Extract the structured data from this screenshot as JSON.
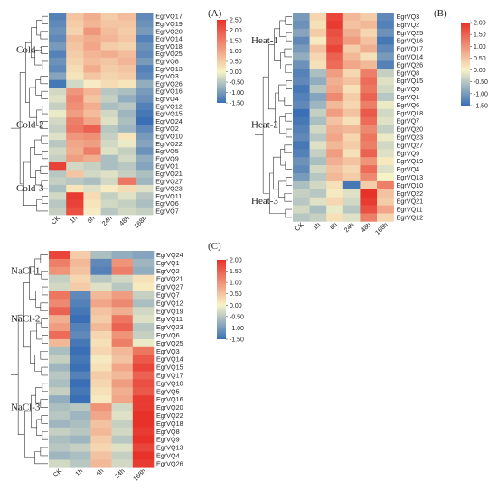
{
  "colors": {
    "low": "#3a6fb5",
    "mid": "#f7f3c8",
    "high": "#e7322a"
  },
  "chart_data": [
    {
      "type": "heatmap",
      "panel_label": "(A)",
      "columns": [
        "CK",
        "1h",
        "6h",
        "24h",
        "48h",
        "168h"
      ],
      "rows": [
        "EgrVQ17",
        "EgrVQ19",
        "EgrVQ20",
        "EgrVQ14",
        "EgrVQ18",
        "EgrVQ25",
        "EgrVQ8",
        "EgrVQ13",
        "EgrVQ3",
        "EgrVQ26",
        "EgrVQ16",
        "EgrVQ4",
        "EgrVQ12",
        "EgrVQ15",
        "EgrVQ24",
        "EgrVQ2",
        "EgrVQ10",
        "EgrVQ22",
        "EgrVQ5",
        "EgrVQ9",
        "EgrVQ1",
        "EgrVQ21",
        "EgrVQ27",
        "EgrVQ23",
        "EgrVQ11",
        "EgrVQ6",
        "EgrVQ7"
      ],
      "clusters": [
        {
          "label": "Cold-1",
          "start": 0,
          "end": 9
        },
        {
          "label": "Cold-2",
          "start": 10,
          "end": 19
        },
        {
          "label": "Cold-3",
          "start": 20,
          "end": 26
        }
      ],
      "colorbar": {
        "min": -1.5,
        "max": 2.5,
        "ticks": [
          2.5,
          2.0,
          1.5,
          1.0,
          0.5,
          0.0,
          -0.5,
          -1.0,
          -1.5
        ],
        "tick_labels": [
          "2.50",
          "2.00",
          "1.50",
          "1.00",
          "0.50",
          "0.00",
          "-0.50",
          "-1.00",
          "-1.50"
        ]
      },
      "values": [
        [
          -1.3,
          0.6,
          0.9,
          0.5,
          0.7,
          -1.2
        ],
        [
          -1.2,
          0.5,
          0.8,
          0.6,
          0.6,
          -1.1
        ],
        [
          -1.1,
          0.4,
          1.2,
          0.7,
          0.5,
          -1.0
        ],
        [
          -1.2,
          0.7,
          0.9,
          0.8,
          0.6,
          -1.3
        ],
        [
          -1.0,
          0.6,
          1.0,
          0.5,
          0.4,
          -1.1
        ],
        [
          -1.3,
          0.5,
          0.8,
          0.9,
          0.7,
          -1.2
        ],
        [
          -1.1,
          0.4,
          0.7,
          0.6,
          0.8,
          -1.0
        ],
        [
          -1.2,
          0.3,
          0.9,
          0.5,
          0.6,
          -1.3
        ],
        [
          -0.9,
          0.2,
          0.6,
          0.4,
          0.5,
          -1.2
        ],
        [
          -1.4,
          -0.3,
          0.1,
          0.3,
          0.2,
          -0.8
        ],
        [
          -0.3,
          1.2,
          0.8,
          -0.5,
          -0.6,
          -1.0
        ],
        [
          -0.2,
          1.4,
          0.6,
          -0.4,
          -0.8,
          -1.1
        ],
        [
          -0.4,
          1.3,
          0.9,
          -0.6,
          -0.5,
          -1.3
        ],
        [
          -0.1,
          1.1,
          0.7,
          -0.3,
          -0.7,
          -1.4
        ],
        [
          -0.3,
          1.5,
          1.0,
          -0.2,
          -0.6,
          -1.5
        ],
        [
          -0.4,
          1.6,
          1.9,
          -0.5,
          -0.7,
          -1.2
        ],
        [
          -0.2,
          1.2,
          1.3,
          -0.4,
          0.2,
          -1.0
        ],
        [
          -0.5,
          1.0,
          1.1,
          -0.3,
          -0.1,
          -0.9
        ],
        [
          -0.3,
          0.9,
          1.5,
          -0.2,
          -0.4,
          -1.1
        ],
        [
          -0.4,
          1.1,
          0.9,
          -0.6,
          -0.3,
          -0.8
        ],
        [
          2.3,
          -0.3,
          -0.4,
          -0.6,
          -0.5,
          -0.9
        ],
        [
          -0.5,
          0.6,
          -0.3,
          -0.2,
          -0.4,
          -0.6
        ],
        [
          -0.4,
          -0.5,
          -0.6,
          -0.3,
          1.6,
          -0.7
        ],
        [
          -0.6,
          0.2,
          -0.2,
          0.1,
          0.3,
          -0.2
        ],
        [
          -0.3,
          2.4,
          0.3,
          -0.4,
          -0.2,
          -0.5
        ],
        [
          -0.5,
          2.3,
          0.2,
          -0.3,
          -0.4,
          -0.6
        ],
        [
          -0.4,
          2.1,
          0.1,
          -0.5,
          -0.3,
          -0.4
        ]
      ]
    },
    {
      "type": "heatmap",
      "panel_label": "(B)",
      "columns": [
        "CK",
        "1h",
        "6h",
        "24h",
        "48h",
        "168h"
      ],
      "rows": [
        "EgrVQ3",
        "EgrVQ2",
        "EgrVQ25",
        "EgrVQ16",
        "EgrVQ17",
        "EgrVQ14",
        "EgrVQ26",
        "EgrVQ8",
        "EgrVQ15",
        "EgrVQ5",
        "EgrVQ1",
        "EgrVQ6",
        "EgrVQ18",
        "EgrVQ7",
        "EgrVQ20",
        "EgrVQ23",
        "EgrVQ27",
        "EgrVQ9",
        "EgrVQ19",
        "EgrVQ4",
        "EgrVQ13",
        "EgrVQ10",
        "EgrVQ22",
        "EgrVQ21",
        "EgrVQ11",
        "EgrVQ12"
      ],
      "clusters": [
        {
          "label": "Heat-1",
          "start": 0,
          "end": 6
        },
        {
          "label": "Heat-2",
          "start": 7,
          "end": 20
        },
        {
          "label": "Heat-3",
          "start": 21,
          "end": 25
        }
      ],
      "colorbar": {
        "min": -1.5,
        "max": 2.0,
        "ticks": [
          2.0,
          1.5,
          1.0,
          0.5,
          0.0,
          -0.5,
          -1.0,
          -1.5
        ],
        "tick_labels": [
          "2.00",
          "1.50",
          "1.00",
          "0.50",
          "0.00",
          "-0.50",
          "-1.00",
          "-1.50"
        ]
      },
      "values": [
        [
          -1.0,
          0.3,
          1.8,
          0.6,
          0.4,
          -1.2
        ],
        [
          -1.1,
          0.2,
          1.9,
          0.5,
          0.6,
          -1.3
        ],
        [
          -0.9,
          0.4,
          1.7,
          0.7,
          0.3,
          -1.1
        ],
        [
          -1.2,
          0.1,
          1.6,
          0.9,
          0.5,
          -1.4
        ],
        [
          -1.0,
          0.5,
          1.8,
          0.4,
          0.7,
          -1.2
        ],
        [
          -0.8,
          0.3,
          1.5,
          0.6,
          0.2,
          -1.0
        ],
        [
          -1.1,
          0.2,
          1.4,
          0.8,
          0.6,
          -1.3
        ],
        [
          -1.3,
          -0.6,
          0.9,
          0.3,
          1.2,
          -0.4
        ],
        [
          -1.2,
          -0.8,
          0.7,
          0.5,
          1.4,
          -0.2
        ],
        [
          -1.4,
          -0.5,
          0.8,
          0.2,
          1.3,
          -0.3
        ],
        [
          -1.3,
          -0.9,
          1.1,
          0.4,
          1.5,
          -0.5
        ],
        [
          -1.2,
          -0.7,
          0.6,
          0.3,
          1.2,
          -0.1
        ],
        [
          -1.5,
          -0.4,
          0.9,
          0.5,
          1.6,
          -0.3
        ],
        [
          -1.4,
          -0.6,
          0.5,
          0.2,
          1.4,
          -0.2
        ],
        [
          -1.3,
          -0.3,
          0.7,
          0.6,
          1.1,
          -0.4
        ],
        [
          -1.2,
          -0.5,
          0.8,
          0.3,
          1.3,
          -0.1
        ],
        [
          -1.4,
          -0.2,
          0.6,
          0.4,
          1.2,
          -0.3
        ],
        [
          -1.3,
          -0.4,
          0.9,
          0.2,
          1.5,
          -0.2
        ],
        [
          -1.1,
          -0.6,
          0.7,
          0.5,
          1.0,
          0.1
        ],
        [
          -1.2,
          -0.3,
          0.5,
          0.3,
          1.4,
          -0.2
        ],
        [
          -1.0,
          -0.5,
          0.6,
          0.4,
          1.1,
          0.0
        ],
        [
          -0.6,
          -0.3,
          0.2,
          -1.4,
          0.4,
          1.2
        ],
        [
          -0.4,
          -0.5,
          0.1,
          -0.2,
          2.0,
          0.5
        ],
        [
          -0.5,
          -0.2,
          0.3,
          -0.3,
          1.9,
          0.4
        ],
        [
          -0.3,
          -0.6,
          -0.1,
          -0.5,
          1.7,
          0.8
        ],
        [
          -0.5,
          -0.4,
          0.2,
          -0.2,
          1.2,
          0.3
        ]
      ]
    },
    {
      "type": "heatmap",
      "panel_label": "(C)",
      "columns": [
        "CK",
        "1h",
        "6h",
        "24h",
        "168h"
      ],
      "rows": [
        "EgrVQ24",
        "EgrVQ1",
        "EgrVQ2",
        "EgrVQ21",
        "EgrVQ27",
        "EgrVQ7",
        "EgrVQ12",
        "EgrVQ19",
        "EgrVQ11",
        "EgrVQ23",
        "EgrVQ6",
        "EgrVQ25",
        "EgrVQ3",
        "EgrVQ14",
        "EgrVQ15",
        "EgrVQ17",
        "EgrVQ10",
        "EgrVQ5",
        "EgrVQ16",
        "EgrVQ20",
        "EgrVQ22",
        "EgrVQ18",
        "EgrVQ8",
        "EgrVQ9",
        "EgrVQ13",
        "EgrVQ4",
        "EgrVQ26"
      ],
      "clusters": [
        {
          "label": "NaCl-1",
          "start": 0,
          "end": 4
        },
        {
          "label": "NaCl-2",
          "start": 5,
          "end": 11
        },
        {
          "label": "NaCl-3",
          "start": 12,
          "end": 26
        }
      ],
      "colorbar": {
        "min": -1.5,
        "max": 2.0,
        "ticks": [
          2.0,
          1.5,
          1.0,
          0.5,
          0.0,
          -0.5,
          -1.0,
          -1.5
        ],
        "tick_labels": [
          "2.00",
          "1.50",
          "1.00",
          "0.50",
          "0.00",
          "-0.50",
          "-1.00",
          "-1.50"
        ]
      },
      "values": [
        [
          1.8,
          0.4,
          -0.6,
          -0.8,
          -0.9
        ],
        [
          1.2,
          0.6,
          -1.2,
          1.0,
          -0.7
        ],
        [
          1.0,
          0.5,
          -1.3,
          1.2,
          -0.8
        ],
        [
          -0.4,
          0.3,
          -0.5,
          -0.3,
          0.2
        ],
        [
          -0.3,
          0.4,
          -0.2,
          -0.5,
          0.1
        ],
        [
          1.3,
          -1.2,
          0.6,
          0.9,
          -0.4
        ],
        [
          1.1,
          -1.3,
          0.8,
          1.1,
          -0.6
        ],
        [
          1.5,
          -1.4,
          0.5,
          0.7,
          -0.3
        ],
        [
          0.7,
          -1.5,
          0.4,
          1.3,
          -0.2
        ],
        [
          0.9,
          -1.3,
          0.6,
          1.5,
          -0.5
        ],
        [
          1.4,
          -1.2,
          0.3,
          1.0,
          -0.4
        ],
        [
          0.6,
          -1.4,
          0.2,
          1.2,
          -0.1
        ],
        [
          -0.6,
          -1.5,
          0.3,
          0.6,
          1.3
        ],
        [
          -0.4,
          -1.4,
          0.1,
          0.5,
          1.6
        ],
        [
          -0.7,
          -1.5,
          0.2,
          0.8,
          1.8
        ],
        [
          -0.5,
          -1.3,
          0.4,
          0.6,
          1.5
        ],
        [
          -0.6,
          -1.5,
          0.3,
          0.9,
          1.7
        ],
        [
          -0.4,
          -1.4,
          0.2,
          0.7,
          1.6
        ],
        [
          -0.8,
          -1.5,
          0.1,
          0.8,
          1.9
        ],
        [
          -0.6,
          -0.5,
          1.0,
          -0.3,
          1.9
        ],
        [
          -0.5,
          -0.7,
          0.8,
          -0.2,
          2.0
        ],
        [
          -0.7,
          -0.6,
          0.5,
          -0.4,
          2.0
        ],
        [
          -0.4,
          -0.5,
          0.6,
          -0.3,
          1.9
        ],
        [
          -0.6,
          -0.7,
          0.4,
          -0.5,
          2.0
        ],
        [
          -0.5,
          -0.4,
          0.3,
          -0.2,
          1.8
        ],
        [
          -0.7,
          -0.6,
          0.5,
          -0.4,
          2.0
        ],
        [
          -0.3,
          -0.5,
          0.6,
          -0.3,
          1.9
        ]
      ]
    }
  ]
}
